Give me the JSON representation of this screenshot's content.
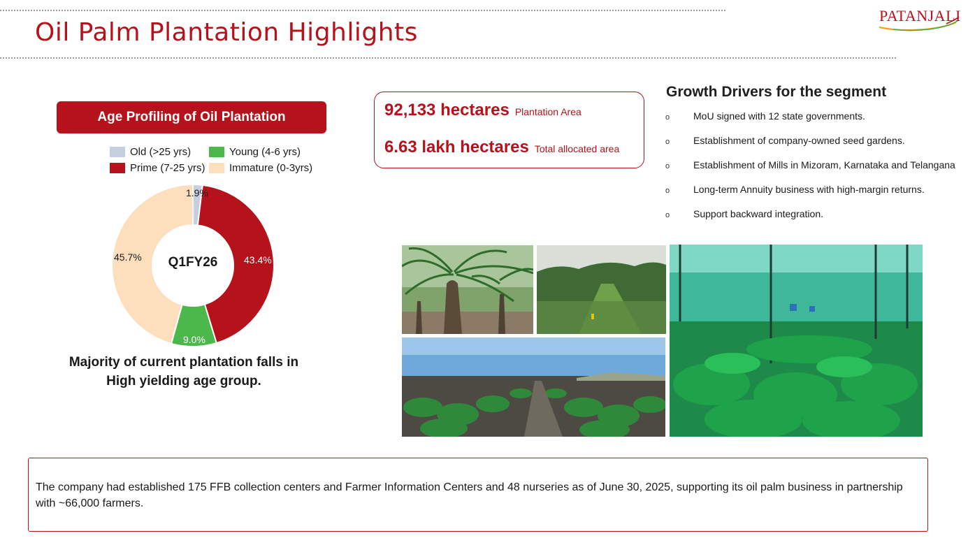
{
  "slide": {
    "title": "Oil Palm Plantation Highlights",
    "logo_text": "PATANJALI",
    "colors": {
      "brand_red": "#b5121b",
      "old": "#c6cfe0",
      "prime": "#b5121b",
      "young": "#4cb84c",
      "immature": "#fddfbd"
    }
  },
  "age_profile": {
    "header": "Age Profiling of Oil Plantation",
    "center_label": "Q1FY26",
    "note": "Majority of current plantation falls in High yielding age group."
  },
  "chart_data": {
    "type": "pie",
    "title": "Age Profiling of Oil Plantation",
    "center_label": "Q1FY26",
    "legend": [
      "Old (>25 yrs)",
      "Young (4-6 yrs)",
      "Prime (7-25 yrs)",
      "Immature (0-3yrs)"
    ],
    "slices": [
      {
        "label": "Old (>25 yrs)",
        "value": 1.9,
        "display": "1.9%",
        "color": "#c6cfe0"
      },
      {
        "label": "Prime (7-25 yrs)",
        "value": 43.4,
        "display": "43.4%",
        "color": "#b5121b"
      },
      {
        "label": "Young (4-6 yrs)",
        "value": 9.0,
        "display": "9.0%",
        "color": "#4cb84c"
      },
      {
        "label": "Immature (0-3yrs)",
        "value": 45.7,
        "display": "45.7%",
        "color": "#fddfbd"
      }
    ]
  },
  "stats": [
    {
      "value": "92,133 hectares",
      "label": "Plantation Area"
    },
    {
      "value": "6.63 lakh hectares",
      "label": "Total allocated area"
    }
  ],
  "growth_drivers": {
    "title": "Growth Drivers for the segment",
    "bullet": "o",
    "items": [
      "MoU signed with 12 state governments.",
      "Establishment of company-owned seed gardens.",
      "Establishment of Mills in Mizoram, Karnataka and Telangana",
      "Long-term Annuity business with high-margin returns.",
      "Support backward integration."
    ]
  },
  "footer_note": "The company had established 175 FFB collection centers and Farmer Information Centers and 48 nurseries as of June 30, 2025, supporting its oil palm business in partnership with ~66,000 farmers."
}
